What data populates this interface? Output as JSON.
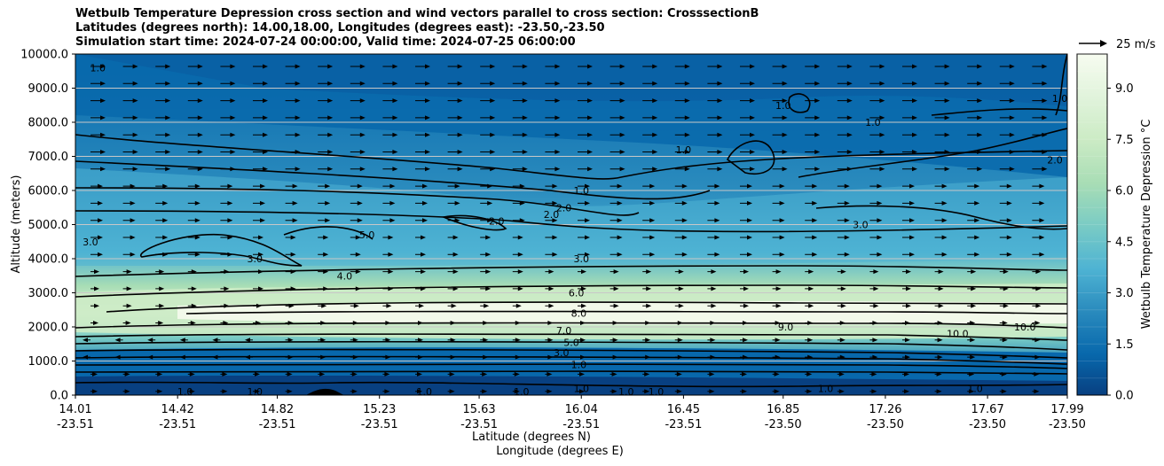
{
  "chart_data": {
    "type": "heatmap",
    "title_lines": [
      "Wetbulb Temperature Depression cross section and wind vectors parallel to cross section: CrosssectionB",
      "Latitudes (degrees north): 14.00,18.00, Longitudes (degrees east): -23.50,-23.50",
      "Simulation start time: 2024-07-24 00:00:00, Valid time: 2024-07-25 06:00:00"
    ],
    "ylabel": "Altitude (meters)",
    "xlabel_lat": "Latitude (degrees N)",
    "xlabel_lon": "Longitude (degrees E)",
    "ylim": [
      0,
      10000
    ],
    "y_ticks": [
      "0.0",
      "1000.0",
      "2000.0",
      "3000.0",
      "4000.0",
      "5000.0",
      "6000.0",
      "7000.0",
      "8000.0",
      "9000.0",
      "10000.0"
    ],
    "x_ticks_lat": [
      "14.01",
      "14.42",
      "14.82",
      "15.23",
      "15.63",
      "16.04",
      "16.45",
      "16.85",
      "17.26",
      "17.67",
      "17.99"
    ],
    "x_ticks_lon": [
      "-23.51",
      "-23.51",
      "-23.51",
      "-23.51",
      "-23.51",
      "-23.51",
      "-23.51",
      "-23.50",
      "-23.50",
      "-23.50",
      "-23.50"
    ],
    "colorbar": {
      "label": "Wetbulb Temperature Depression °C",
      "range": [
        0,
        10
      ],
      "ticks": [
        "0.0",
        "1.5",
        "3.0",
        "4.5",
        "6.0",
        "7.5",
        "9.0"
      ],
      "colors": [
        "#084081",
        "#0868ac",
        "#2b8cbe",
        "#4eb3d3",
        "#7bccc4",
        "#a8ddb5",
        "#ccebc5",
        "#e0f3db",
        "#f7fcf0"
      ]
    },
    "quiver_key": "25 m/s",
    "contour_labels": [
      {
        "text": "1.0",
        "lat": 14.1,
        "alt": 9600
      },
      {
        "text": "3.0",
        "lat": 14.07,
        "alt": 4500
      },
      {
        "text": "3.0",
        "lat": 14.73,
        "alt": 4000
      },
      {
        "text": "4.0",
        "lat": 15.09,
        "alt": 3500
      },
      {
        "text": "5.0",
        "lat": 15.18,
        "alt": 4700
      },
      {
        "text": "2.0",
        "lat": 15.7,
        "alt": 5100
      },
      {
        "text": "2.0",
        "lat": 15.92,
        "alt": 5300
      },
      {
        "text": "2.0",
        "lat": 15.97,
        "alt": 5500
      },
      {
        "text": "1.0",
        "lat": 16.04,
        "alt": 6000
      },
      {
        "text": "3.0",
        "lat": 16.04,
        "alt": 4000
      },
      {
        "text": "6.0",
        "lat": 16.02,
        "alt": 3000
      },
      {
        "text": "8.0",
        "lat": 16.03,
        "alt": 2400
      },
      {
        "text": "7.0",
        "lat": 15.97,
        "alt": 1900
      },
      {
        "text": "5.0",
        "lat": 16.0,
        "alt": 1550
      },
      {
        "text": "3.0",
        "lat": 15.96,
        "alt": 1250
      },
      {
        "text": "1.0",
        "lat": 16.03,
        "alt": 900
      },
      {
        "text": "1.0",
        "lat": 16.04,
        "alt": 200
      },
      {
        "text": "1.0",
        "lat": 14.45,
        "alt": 100
      },
      {
        "text": "1.0",
        "lat": 14.73,
        "alt": 100
      },
      {
        "text": "1.0",
        "lat": 15.41,
        "alt": 100
      },
      {
        "text": "1.0",
        "lat": 15.8,
        "alt": 100
      },
      {
        "text": "1.0",
        "lat": 16.22,
        "alt": 100
      },
      {
        "text": "1.0",
        "lat": 16.34,
        "alt": 100
      },
      {
        "text": "1.0",
        "lat": 16.45,
        "alt": 7200
      },
      {
        "text": "1.0",
        "lat": 16.85,
        "alt": 8500
      },
      {
        "text": "9.0",
        "lat": 16.86,
        "alt": 2000
      },
      {
        "text": "1.0",
        "lat": 17.21,
        "alt": 8000
      },
      {
        "text": "3.0",
        "lat": 17.16,
        "alt": 5000
      },
      {
        "text": "2.0",
        "lat": 17.94,
        "alt": 6900
      },
      {
        "text": "1.0",
        "lat": 17.96,
        "alt": 8700
      },
      {
        "text": "10.0",
        "lat": 17.55,
        "alt": 1800
      },
      {
        "text": "10.0",
        "lat": 17.82,
        "alt": 2000
      },
      {
        "text": "1.0",
        "lat": 17.62,
        "alt": 200
      },
      {
        "text": "1.0",
        "lat": 17.02,
        "alt": 200
      }
    ]
  }
}
